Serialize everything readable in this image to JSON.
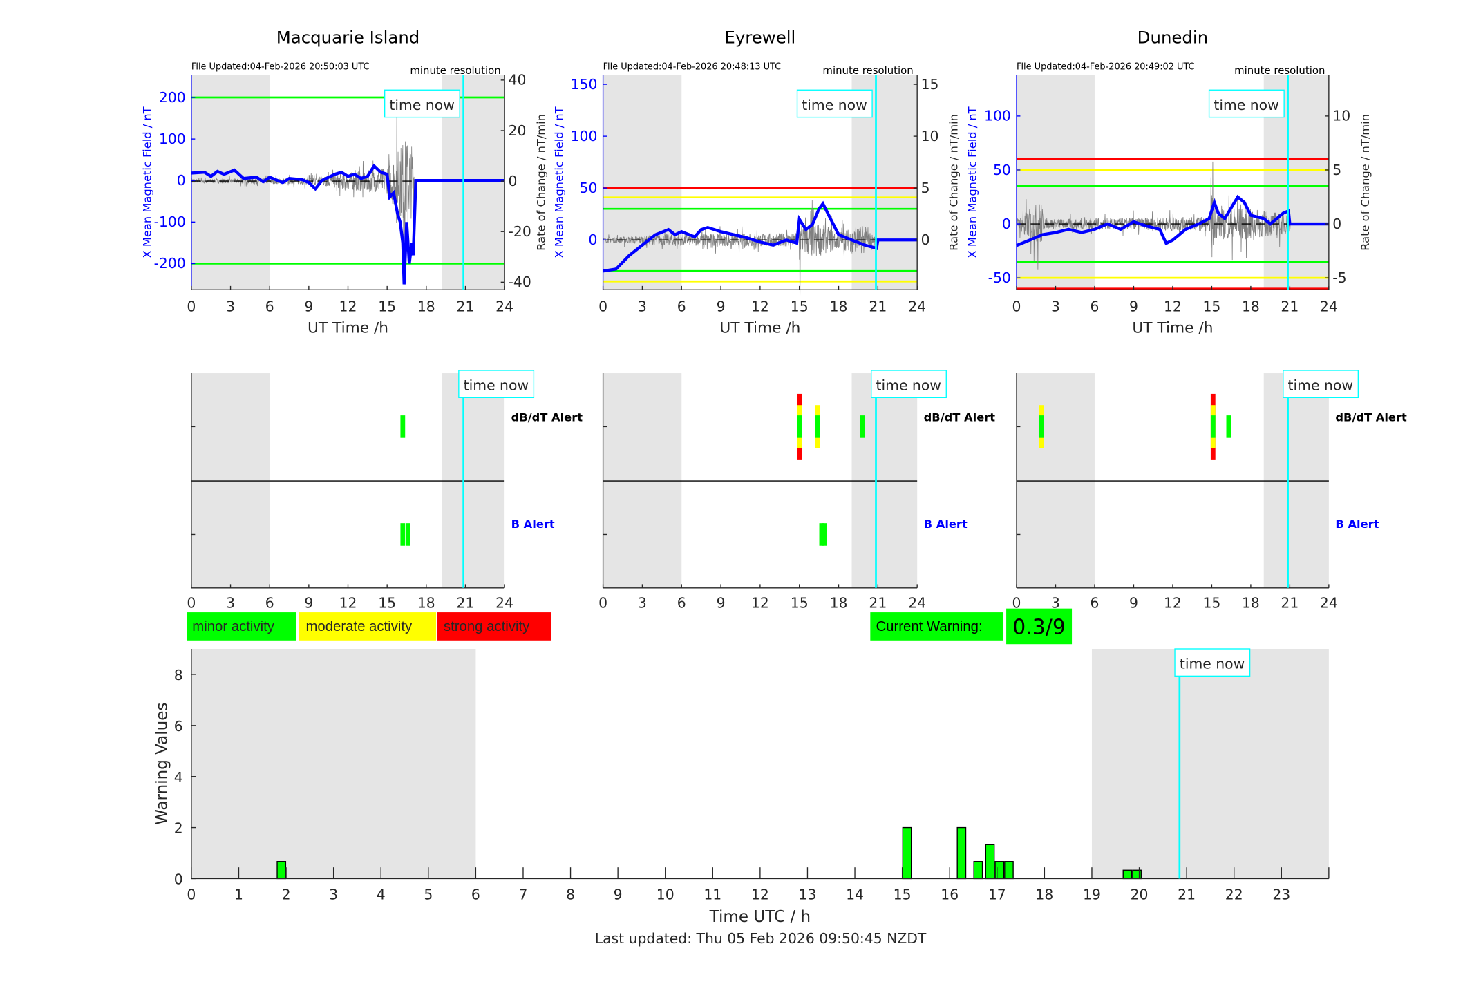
{
  "colors": {
    "field": "#0000ff",
    "shade": "#e5e5e5",
    "now": "#00ffff",
    "minor": "#00ff00",
    "moderate": "#ffff00",
    "strong": "#ff0000",
    "rate": "#808080"
  },
  "time_now_h": 20.85,
  "footer": "Last updated: Thu 05 Feb 2026 09:50:45 NZDT",
  "time_now_label": "time now",
  "minute_resolution_label": "minute resolution",
  "legend": {
    "minor": "minor activity",
    "moderate": "moderate activity",
    "strong": "strong activity"
  },
  "current_warning": {
    "label": "Current Warning:",
    "value": "0.3/9"
  },
  "chart_data": [
    {
      "type": "line",
      "title": "Macquarie Island",
      "file_updated": "File Updated:04-Feb-2026 20:50:03 UTC",
      "xlabel": "UT Time /h",
      "ylabel": "X Mean Magnetic Field / nT",
      "ylabel_right": "Rate of Change / nT/min",
      "xlim": [
        0,
        24
      ],
      "xticks": [
        0,
        3,
        6,
        9,
        12,
        15,
        18,
        21,
        24
      ],
      "ylim": [
        -263,
        254
      ],
      "yticks": [
        -200,
        -100,
        0,
        100,
        200
      ],
      "ylim_right": [
        -43,
        42
      ],
      "yticks_right": [
        -40,
        -20,
        0,
        20,
        40
      ],
      "night": [
        [
          0,
          6
        ],
        [
          19.2,
          24
        ]
      ],
      "thresholds": [
        {
          "value": 200,
          "color": "minor"
        },
        {
          "value": -200,
          "color": "minor"
        }
      ],
      "field": [
        [
          0,
          18
        ],
        [
          1,
          20
        ],
        [
          1.5,
          10
        ],
        [
          2,
          22
        ],
        [
          2.5,
          15
        ],
        [
          3.3,
          25
        ],
        [
          4,
          5
        ],
        [
          5,
          8
        ],
        [
          5.5,
          -3
        ],
        [
          6,
          8
        ],
        [
          7,
          -5
        ],
        [
          7.5,
          5
        ],
        [
          8.5,
          2
        ],
        [
          9,
          -5
        ],
        [
          9.5,
          -20
        ],
        [
          10,
          0
        ],
        [
          11,
          15
        ],
        [
          11.5,
          20
        ],
        [
          12,
          10
        ],
        [
          12.5,
          15
        ],
        [
          13,
          5
        ],
        [
          13.5,
          10
        ],
        [
          14,
          35
        ],
        [
          14.5,
          20
        ],
        [
          15,
          15
        ],
        [
          15.2,
          -40
        ],
        [
          15.5,
          -30
        ],
        [
          15.8,
          -80
        ],
        [
          16,
          -100
        ],
        [
          16.2,
          -150
        ],
        [
          16.3,
          -250
        ],
        [
          16.5,
          -100
        ],
        [
          16.7,
          -200
        ],
        [
          16.9,
          -150
        ],
        [
          17,
          -180
        ],
        [
          17.2,
          0
        ],
        [
          24,
          0
        ]
      ],
      "rate_envelope": [
        [
          0,
          1.5
        ],
        [
          9,
          3
        ],
        [
          15,
          12
        ],
        [
          16.3,
          38
        ],
        [
          17.2,
          30
        ],
        [
          17.25,
          0
        ],
        [
          24,
          0
        ]
      ],
      "dbdt_alerts": [
        {
          "t": 16.2,
          "level": 1
        }
      ],
      "b_alerts": [
        {
          "t": 16.2,
          "level": 1
        },
        {
          "t": 16.6,
          "level": 1
        }
      ]
    },
    {
      "type": "line",
      "title": "Eyrewell",
      "file_updated": "File Updated:04-Feb-2026 20:48:13 UTC",
      "xlabel": "UT Time /h",
      "ylabel": "X Mean Magnetic Field / nT",
      "ylabel_right": "Rate of Change / nT/min",
      "xlim": [
        0,
        24
      ],
      "xticks": [
        0,
        3,
        6,
        9,
        12,
        15,
        18,
        21,
        24
      ],
      "ylim": [
        -48,
        159
      ],
      "yticks": [
        0,
        50,
        100,
        150
      ],
      "ylim_right": [
        -4.8,
        15.9
      ],
      "yticks_right": [
        0,
        5,
        10,
        15
      ],
      "night": [
        [
          0,
          6
        ],
        [
          19,
          24
        ]
      ],
      "thresholds": [
        {
          "value": 50,
          "color": "strong"
        },
        {
          "value": 41,
          "color": "moderate"
        },
        {
          "value": 30,
          "color": "minor"
        },
        {
          "value": -30,
          "color": "minor"
        },
        {
          "value": -40,
          "color": "moderate"
        }
      ],
      "field": [
        [
          0,
          -30
        ],
        [
          1,
          -28
        ],
        [
          2,
          -15
        ],
        [
          3,
          -5
        ],
        [
          4,
          5
        ],
        [
          5,
          10
        ],
        [
          5.5,
          5
        ],
        [
          6,
          8
        ],
        [
          7,
          3
        ],
        [
          7.5,
          10
        ],
        [
          8,
          12
        ],
        [
          9,
          8
        ],
        [
          10,
          5
        ],
        [
          11,
          2
        ],
        [
          12,
          -2
        ],
        [
          13,
          -5
        ],
        [
          14,
          0
        ],
        [
          14.8,
          -3
        ],
        [
          15,
          20
        ],
        [
          15.5,
          10
        ],
        [
          16,
          15
        ],
        [
          16.5,
          30
        ],
        [
          16.8,
          35
        ],
        [
          17.2,
          25
        ],
        [
          18,
          5
        ],
        [
          19,
          0
        ],
        [
          20,
          -5
        ],
        [
          20.9,
          -8
        ],
        [
          21,
          0
        ],
        [
          24,
          0
        ]
      ],
      "rate_envelope": [
        [
          0,
          0.5
        ],
        [
          5,
          1.2
        ],
        [
          14.9,
          1.5
        ],
        [
          15,
          14
        ],
        [
          15.1,
          3
        ],
        [
          16,
          4
        ],
        [
          18,
          2
        ],
        [
          20,
          3
        ],
        [
          21,
          0
        ],
        [
          24,
          0
        ]
      ],
      "dbdt_alerts": [
        {
          "t": 15,
          "level": 3
        },
        {
          "t": 16.4,
          "level": 2
        },
        {
          "t": 19.8,
          "level": 1
        }
      ],
      "b_alerts": [
        {
          "t": 16.7,
          "level": 1
        },
        {
          "t": 16.9,
          "level": 1
        }
      ]
    },
    {
      "type": "line",
      "title": "Dunedin",
      "file_updated": "File Updated:04-Feb-2026 20:49:02 UTC",
      "xlabel": "UT Time /h",
      "ylabel": "X Mean Magnetic Field / nT",
      "ylabel_right": "Rate of Change / nT/min",
      "xlim": [
        0,
        24
      ],
      "xticks": [
        0,
        3,
        6,
        9,
        12,
        15,
        18,
        21,
        24
      ],
      "ylim": [
        -61,
        138
      ],
      "yticks": [
        -50,
        0,
        50,
        100
      ],
      "ylim_right": [
        -6.1,
        13.8
      ],
      "yticks_right": [
        -5,
        0,
        5,
        10
      ],
      "night": [
        [
          0,
          6
        ],
        [
          19,
          24
        ]
      ],
      "thresholds": [
        {
          "value": 60,
          "color": "strong"
        },
        {
          "value": 50,
          "color": "moderate"
        },
        {
          "value": 35,
          "color": "minor"
        },
        {
          "value": -35,
          "color": "minor"
        },
        {
          "value": -50,
          "color": "moderate"
        },
        {
          "value": -60,
          "color": "strong"
        }
      ],
      "field": [
        [
          0,
          -20
        ],
        [
          1,
          -15
        ],
        [
          2,
          -10
        ],
        [
          3,
          -8
        ],
        [
          4,
          -5
        ],
        [
          5,
          -8
        ],
        [
          6,
          -5
        ],
        [
          7,
          0
        ],
        [
          8,
          -5
        ],
        [
          9,
          2
        ],
        [
          10,
          -2
        ],
        [
          11,
          -5
        ],
        [
          11.5,
          -18
        ],
        [
          12,
          -15
        ],
        [
          12.5,
          -10
        ],
        [
          13,
          -5
        ],
        [
          14,
          0
        ],
        [
          14.8,
          5
        ],
        [
          15.2,
          20
        ],
        [
          15.5,
          10
        ],
        [
          16,
          5
        ],
        [
          16.5,
          15
        ],
        [
          17,
          25
        ],
        [
          17.5,
          20
        ],
        [
          18,
          8
        ],
        [
          19,
          5
        ],
        [
          19.5,
          0
        ],
        [
          20,
          5
        ],
        [
          20.5,
          10
        ],
        [
          20.9,
          12
        ],
        [
          21,
          0
        ],
        [
          24,
          0
        ]
      ],
      "rate_envelope": [
        [
          0,
          1
        ],
        [
          1.9,
          5
        ],
        [
          2.1,
          1
        ],
        [
          14.9,
          1.5
        ],
        [
          15,
          9
        ],
        [
          15.2,
          3
        ],
        [
          17,
          3.5
        ],
        [
          21,
          2
        ],
        [
          21.05,
          0
        ],
        [
          24,
          0
        ]
      ],
      "dbdt_alerts": [
        {
          "t": 1.9,
          "level": 2
        },
        {
          "t": 15.1,
          "level": 3
        },
        {
          "t": 16.3,
          "level": 1
        }
      ],
      "b_alerts": []
    },
    {
      "type": "bar",
      "xlabel": "Time UTC / h",
      "ylabel": "Warning Values",
      "xlim": [
        0,
        24
      ],
      "xticks": [
        0,
        1,
        2,
        3,
        4,
        5,
        6,
        7,
        8,
        9,
        10,
        11,
        12,
        13,
        14,
        15,
        16,
        17,
        18,
        19,
        20,
        21,
        22,
        23
      ],
      "ylim": [
        0,
        9
      ],
      "yticks": [
        0,
        2,
        4,
        6,
        8
      ],
      "night": [
        [
          0,
          6
        ],
        [
          19,
          24
        ]
      ],
      "bars": [
        {
          "x": 1.9,
          "value": 0.67
        },
        {
          "x": 15.1,
          "value": 2
        },
        {
          "x": 16.25,
          "value": 2
        },
        {
          "x": 16.6,
          "value": 0.67
        },
        {
          "x": 16.85,
          "value": 1.33
        },
        {
          "x": 17.05,
          "value": 0.67
        },
        {
          "x": 17.25,
          "value": 0.67
        },
        {
          "x": 19.75,
          "value": 0.33
        },
        {
          "x": 19.95,
          "value": 0.33
        }
      ],
      "bar_width_h": 0.18
    }
  ],
  "alert_labels": {
    "dbdt": "dB/dT Alert",
    "b": "B Alert"
  }
}
